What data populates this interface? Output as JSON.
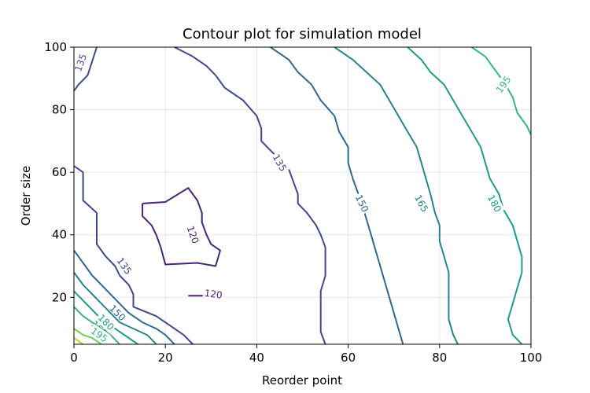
{
  "chart_data": {
    "type": "contour",
    "title": "Contour plot for simulation model",
    "xlabel": "Reorder point",
    "ylabel": "Order size",
    "xlim": [
      0,
      100
    ],
    "ylim": [
      5,
      100
    ],
    "xticks": [
      0,
      20,
      40,
      60,
      80,
      100
    ],
    "yticks": [
      20,
      40,
      60,
      80,
      100
    ],
    "grid": true,
    "colormap": "viridis",
    "level_colors": {
      "120": "#482475",
      "135": "#3e4989",
      "150": "#30678d",
      "165": "#25848e",
      "180": "#1e9b8a",
      "195": "#35b779",
      "210": "#6ece58",
      "225": "#b5de2b"
    },
    "contours": [
      {
        "level": 120,
        "label": "120",
        "label_at": [
          26,
          40
        ],
        "label_angle": 70,
        "points": [
          [
            15,
            50
          ],
          [
            20,
            50.5
          ],
          [
            25,
            55
          ],
          [
            27,
            51
          ],
          [
            28,
            47
          ],
          [
            28,
            44
          ],
          [
            29,
            40
          ],
          [
            30,
            37
          ],
          [
            32,
            35
          ],
          [
            31,
            30
          ],
          [
            27,
            31
          ],
          [
            20,
            30.5
          ],
          [
            19,
            36
          ],
          [
            18,
            40
          ],
          [
            17,
            43
          ],
          [
            15,
            46
          ],
          [
            15,
            50
          ]
        ]
      },
      {
        "level": 120,
        "label": "120",
        "label_at": [
          30.5,
          21
        ],
        "label_angle": 8,
        "points": [
          [
            25,
            20.5
          ],
          [
            29,
            20.5
          ]
        ]
      },
      {
        "level": 135,
        "label": "135",
        "label_at": [
          1.5,
          95
        ],
        "label_angle": -70,
        "points": [
          [
            0,
            86
          ],
          [
            1,
            88
          ],
          [
            3,
            91
          ],
          [
            5,
            100
          ]
        ]
      },
      {
        "level": 135,
        "label": "135",
        "label_at": [
          45,
          63
        ],
        "label_angle": 60,
        "points": [
          [
            22,
            100
          ],
          [
            26,
            97
          ],
          [
            29,
            94
          ],
          [
            31,
            91
          ],
          [
            33,
            87
          ],
          [
            37,
            83
          ],
          [
            40,
            78
          ],
          [
            41,
            74
          ],
          [
            41,
            70
          ],
          [
            43,
            67
          ],
          [
            45,
            64
          ],
          [
            47,
            61
          ],
          [
            48,
            57
          ],
          [
            49,
            53
          ],
          [
            49,
            50
          ],
          [
            51,
            47
          ],
          [
            53,
            43
          ],
          [
            54,
            40
          ],
          [
            55,
            36
          ],
          [
            55,
            32
          ],
          [
            55,
            27
          ],
          [
            54,
            22
          ],
          [
            54,
            17
          ],
          [
            54,
            13
          ],
          [
            54,
            9
          ],
          [
            55,
            5
          ]
        ]
      },
      {
        "level": 135,
        "label": "135",
        "label_at": [
          11,
          30
        ],
        "label_angle": 55,
        "points": [
          [
            0,
            62
          ],
          [
            2,
            60
          ],
          [
            2,
            55
          ],
          [
            2,
            51
          ],
          [
            5,
            47
          ],
          [
            5,
            43
          ],
          [
            5,
            37
          ],
          [
            7,
            33
          ],
          [
            9,
            30
          ],
          [
            10,
            27
          ],
          [
            12,
            24
          ],
          [
            13,
            21
          ],
          [
            13,
            17
          ],
          [
            18,
            14
          ],
          [
            22,
            10
          ],
          [
            24,
            8
          ],
          [
            26,
            5
          ]
        ]
      },
      {
        "level": 150,
        "label": "150",
        "label_at": [
          63,
          50
        ],
        "label_angle": 65,
        "points": [
          [
            43,
            100
          ],
          [
            47,
            96
          ],
          [
            49,
            92
          ],
          [
            52,
            88
          ],
          [
            54,
            83
          ],
          [
            57,
            78
          ],
          [
            58,
            73
          ],
          [
            60,
            68
          ],
          [
            60,
            63
          ],
          [
            61,
            58
          ],
          [
            62,
            54
          ],
          [
            63,
            50
          ],
          [
            64,
            45
          ],
          [
            65,
            40
          ],
          [
            66,
            35
          ],
          [
            67,
            30
          ],
          [
            68,
            25
          ],
          [
            69,
            20
          ],
          [
            70,
            15
          ],
          [
            71,
            10
          ],
          [
            72,
            5
          ]
        ]
      },
      {
        "level": 150,
        "label": "150",
        "label_at": [
          9.5,
          15
        ],
        "label_angle": 45,
        "points": [
          [
            0,
            35
          ],
          [
            2,
            31
          ],
          [
            4,
            27
          ],
          [
            6,
            24
          ],
          [
            8,
            21
          ],
          [
            10,
            18
          ],
          [
            12,
            15
          ],
          [
            15,
            12
          ],
          [
            18,
            10
          ],
          [
            20,
            8
          ],
          [
            22,
            5
          ]
        ]
      },
      {
        "level": 165,
        "label": "165",
        "label_at": [
          76,
          50
        ],
        "label_angle": 62,
        "points": [
          [
            57,
            100
          ],
          [
            61,
            96
          ],
          [
            64,
            92
          ],
          [
            67,
            88
          ],
          [
            69,
            83
          ],
          [
            71,
            78
          ],
          [
            73,
            73
          ],
          [
            75,
            68
          ],
          [
            76,
            63
          ],
          [
            77,
            58
          ],
          [
            78,
            53
          ],
          [
            79,
            47
          ],
          [
            80,
            43
          ],
          [
            80,
            38
          ],
          [
            81,
            33
          ],
          [
            82,
            28
          ],
          [
            82,
            23
          ],
          [
            82,
            18
          ],
          [
            82,
            13
          ],
          [
            83,
            8
          ],
          [
            84,
            5
          ]
        ]
      },
      {
        "level": 165,
        "label": "165",
        "label_at": [
          5.5,
          10
        ],
        "label_angle": 45,
        "points": [
          [
            0,
            28
          ],
          [
            2,
            24
          ],
          [
            4,
            21
          ],
          [
            6,
            18
          ],
          [
            8,
            15
          ],
          [
            10,
            12
          ],
          [
            13,
            10
          ],
          [
            16,
            8
          ],
          [
            18,
            5
          ]
        ]
      },
      {
        "level": 180,
        "label": "180",
        "label_at": [
          92,
          50
        ],
        "label_angle": 62,
        "points": [
          [
            73,
            100
          ],
          [
            76,
            96
          ],
          [
            78,
            92
          ],
          [
            81,
            88
          ],
          [
            83,
            83
          ],
          [
            85,
            78
          ],
          [
            87,
            73
          ],
          [
            89,
            68
          ],
          [
            90,
            63
          ],
          [
            91,
            58
          ],
          [
            93,
            53
          ],
          [
            94,
            48
          ],
          [
            96,
            43
          ],
          [
            97,
            38
          ],
          [
            98,
            33
          ],
          [
            98,
            28
          ],
          [
            97,
            23
          ],
          [
            96,
            18
          ],
          [
            95,
            13
          ],
          [
            96,
            8
          ],
          [
            98,
            5
          ]
        ]
      },
      {
        "level": 180,
        "label": "180",
        "label_at": [
          7,
          12
        ],
        "label_angle": 45,
        "points": [
          [
            0,
            22
          ],
          [
            2,
            19
          ],
          [
            4,
            16
          ],
          [
            6,
            13
          ],
          [
            8,
            11
          ],
          [
            10,
            9
          ],
          [
            12,
            7
          ],
          [
            14,
            5
          ]
        ]
      },
      {
        "level": 195,
        "label": "195",
        "label_at": [
          94,
          88
        ],
        "label_angle": -55,
        "points": [
          [
            87,
            100
          ],
          [
            90,
            97
          ],
          [
            92,
            93
          ],
          [
            94,
            89
          ],
          [
            96,
            84
          ],
          [
            97,
            79
          ],
          [
            99,
            75
          ],
          [
            100,
            72
          ]
        ]
      },
      {
        "level": 195,
        "label": "195",
        "label_at": [
          5.5,
          8
        ],
        "label_angle": 35,
        "points": [
          [
            0,
            17
          ],
          [
            2,
            14
          ],
          [
            4,
            12
          ],
          [
            6,
            10
          ],
          [
            8,
            8
          ],
          [
            10,
            5
          ]
        ]
      },
      {
        "level": 210,
        "label": "",
        "points": [
          [
            0,
            10
          ],
          [
            2,
            8
          ],
          [
            4,
            7
          ],
          [
            6,
            5
          ]
        ]
      },
      {
        "level": 225,
        "label": "",
        "points": [
          [
            0,
            7
          ],
          [
            1,
            6
          ],
          [
            2,
            5
          ]
        ]
      }
    ]
  }
}
